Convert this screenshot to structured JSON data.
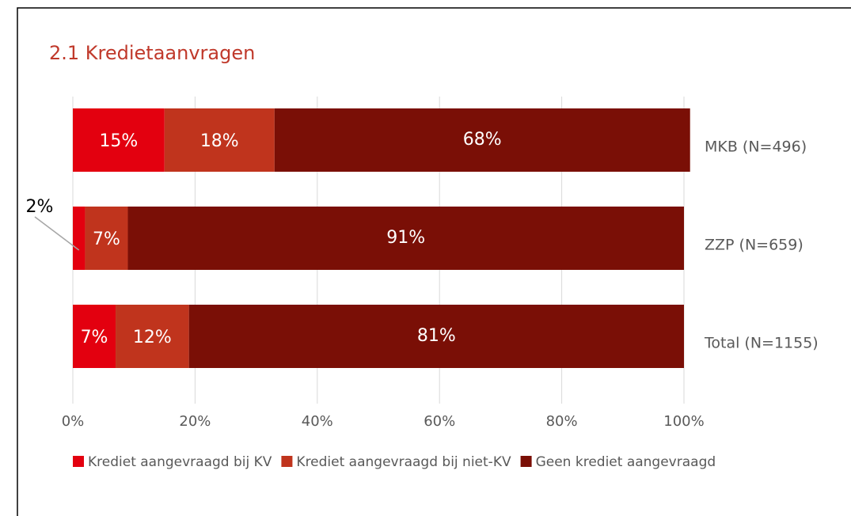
{
  "chart_data": {
    "type": "stacked-barh",
    "title": "2.1 Kredietaanvragen",
    "categories": [
      "MKB (N=496)",
      "ZZP (N=659)",
      "Total (N=1155)"
    ],
    "series": [
      {
        "name": "Krediet aangevraagd bij KV",
        "color": "#e3000f",
        "values": [
          15,
          2,
          7
        ],
        "value_labels": [
          "15%",
          "2%",
          "7%"
        ]
      },
      {
        "name": "Krediet aangevraagd bij niet-KV",
        "color": "#c0341d",
        "values": [
          18,
          7,
          12
        ],
        "value_labels": [
          "18%",
          "7%",
          "12%"
        ]
      },
      {
        "name": "Geen krediet aangevraagd",
        "color": "#7a0f06",
        "values": [
          68,
          91,
          81
        ],
        "value_labels": [
          "68%",
          "91%",
          "81%"
        ]
      }
    ],
    "xlim": [
      0,
      100
    ],
    "xticks": [
      {
        "value": 0,
        "label": "0%"
      },
      {
        "value": 20,
        "label": "20%"
      },
      {
        "value": 40,
        "label": "40%"
      },
      {
        "value": 60,
        "label": "60%"
      },
      {
        "value": 80,
        "label": "80%"
      },
      {
        "value": 100,
        "label": "100%"
      }
    ],
    "grid": true,
    "legend": "bottom"
  }
}
